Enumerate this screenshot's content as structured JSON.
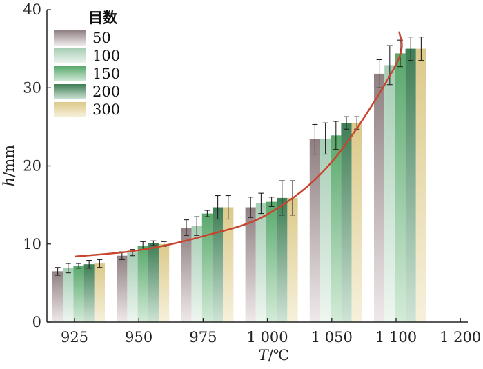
{
  "chart_data": {
    "type": "bar",
    "categories": [
      "925",
      "950",
      "975",
      "1 000",
      "1 050",
      "1 100"
    ],
    "x_tick_labels": [
      "925",
      "950",
      "975",
      "1 000",
      "1 050",
      "1 100",
      "1 200"
    ],
    "xlabel_italic": "T",
    "xlabel_rest": "/℃",
    "ylabel_italic": "h",
    "ylabel_rest": "/mm",
    "ylim": [
      0,
      40
    ],
    "y_ticks": [
      "0",
      "10",
      "20",
      "30",
      "40"
    ],
    "legend_title": "目数",
    "legend_position": "top-left",
    "series": [
      {
        "name": "50",
        "values": [
          6.5,
          8.5,
          12.1,
          14.7,
          23.4,
          31.8
        ],
        "errors": [
          0.5,
          0.5,
          1.0,
          1.3,
          1.9,
          1.8
        ],
        "color_top": "#8f7f81",
        "color_bottom": "#efe9ea"
      },
      {
        "name": "100",
        "values": [
          6.9,
          8.9,
          12.3,
          15.2,
          23.5,
          32.9
        ],
        "errors": [
          0.6,
          0.4,
          1.2,
          1.3,
          2.0,
          2.5
        ],
        "color_top": "#a7cdb5",
        "color_bottom": "#eef6f0"
      },
      {
        "name": "150",
        "values": [
          7.2,
          9.8,
          13.9,
          15.4,
          23.9,
          34.4
        ],
        "errors": [
          0.3,
          0.5,
          0.4,
          0.6,
          1.8,
          1.7
        ],
        "color_top": "#58a86b",
        "color_bottom": "#d3ebd8"
      },
      {
        "name": "200",
        "values": [
          7.4,
          10.1,
          14.7,
          15.9,
          25.5,
          35.0
        ],
        "errors": [
          0.5,
          0.3,
          1.5,
          2.2,
          0.8,
          1.5
        ],
        "color_top": "#3e7d55",
        "color_bottom": "#cfe4d6"
      },
      {
        "name": "300",
        "values": [
          7.5,
          10.0,
          14.7,
          15.9,
          25.5,
          35.0
        ],
        "errors": [
          0.5,
          0.3,
          1.5,
          2.2,
          0.8,
          1.5
        ],
        "color_top": "#dcc98a",
        "color_bottom": "#f7f1dc"
      }
    ],
    "trend_curve": {
      "x": [
        925,
        950,
        975,
        1000,
        1050,
        1100,
        1105
      ],
      "y": [
        8.4,
        9.2,
        11.0,
        13.8,
        20.5,
        33.0,
        37.2
      ],
      "color": "#c8442d"
    },
    "grid": false
  }
}
